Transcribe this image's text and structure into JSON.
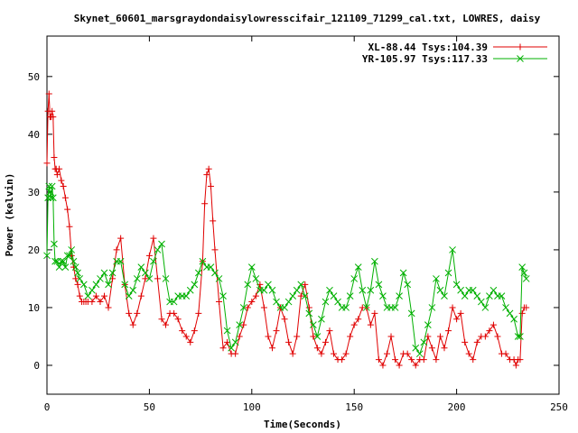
{
  "chart_data": {
    "type": "line",
    "title": "Skynet_60601_marsgraydondaisylowresscifair_121109_71299_cal.txt, LOWRES, daisy",
    "xlabel": "Time(Seconds)",
    "ylabel": "Power (kelvin)",
    "xlim": [
      0,
      250
    ],
    "ylim": [
      -5,
      57
    ],
    "xticks": [
      "0",
      "50",
      "100",
      "150",
      "200",
      "250"
    ],
    "yticks": [
      "0",
      "10",
      "20",
      "30",
      "40",
      "50"
    ],
    "xtick_values": [
      0,
      50,
      100,
      150,
      200,
      250
    ],
    "ytick_values": [
      0,
      10,
      20,
      30,
      40,
      50
    ],
    "grid": false,
    "legend_position": "top-right",
    "series": [
      {
        "name": "XL-88.44 Tsys:104.39",
        "color": "#e00000",
        "marker": "plus",
        "x": [
          0,
          0.5,
          1,
          1.5,
          2,
          2.5,
          3,
          3.5,
          4,
          4.5,
          5,
          6,
          7,
          8,
          9,
          10,
          11,
          12,
          13,
          14,
          15,
          16,
          17,
          18,
          19,
          20,
          22,
          24,
          26,
          28,
          30,
          32,
          34,
          36,
          38,
          40,
          42,
          44,
          46,
          48,
          50,
          52,
          54,
          56,
          58,
          60,
          62,
          64,
          66,
          68,
          70,
          72,
          74,
          76,
          77,
          78,
          79,
          80,
          81,
          82,
          84,
          86,
          88,
          90,
          92,
          94,
          96,
          98,
          100,
          102,
          104,
          106,
          108,
          110,
          112,
          114,
          116,
          118,
          120,
          122,
          124,
          126,
          128,
          130,
          132,
          134,
          136,
          138,
          140,
          142,
          144,
          146,
          148,
          150,
          152,
          154,
          156,
          158,
          160,
          162,
          164,
          166,
          168,
          170,
          172,
          174,
          176,
          178,
          180,
          182,
          184,
          186,
          188,
          190,
          192,
          194,
          196,
          198,
          200,
          202,
          204,
          206,
          208,
          210,
          212,
          214,
          216,
          218,
          220,
          222,
          224,
          226,
          228,
          229,
          230,
          231,
          232,
          233,
          234
        ],
        "values": [
          35,
          44,
          47,
          43,
          43,
          44,
          43,
          36,
          34,
          34,
          33,
          34,
          32,
          31,
          29,
          27,
          24,
          19,
          17,
          15,
          14,
          12,
          11,
          11,
          11,
          11,
          11,
          12,
          11,
          12,
          10,
          15,
          20,
          22,
          14,
          9,
          7,
          9,
          12,
          15,
          19,
          22,
          15,
          8,
          7,
          9,
          9,
          8,
          6,
          5,
          4,
          6,
          9,
          18,
          28,
          33,
          34,
          31,
          25,
          20,
          11,
          3,
          4,
          2,
          2,
          5,
          7,
          10,
          11,
          12,
          14,
          10,
          5,
          3,
          6,
          10,
          8,
          4,
          2,
          5,
          12,
          14,
          10,
          5,
          3,
          2,
          4,
          6,
          2,
          1,
          1,
          2,
          5,
          7,
          8,
          10,
          10,
          7,
          9,
          1,
          0,
          2,
          5,
          1,
          0,
          2,
          2,
          1,
          0,
          1,
          1,
          5,
          3,
          1,
          5,
          3,
          6,
          10,
          8,
          9,
          4,
          2,
          1,
          4,
          5,
          5,
          6,
          7,
          5,
          2,
          2,
          1,
          1,
          0,
          1,
          1,
          9,
          10,
          10
        ]
      },
      {
        "name": "YR-105.97 Tsys:117.33",
        "color": "#00b000",
        "marker": "x",
        "x": [
          0,
          0.5,
          1,
          1.5,
          2,
          2.5,
          3,
          3.5,
          4,
          5,
          6,
          7,
          8,
          9,
          10,
          11,
          12,
          13,
          14,
          15,
          16,
          18,
          20,
          22,
          24,
          26,
          28,
          30,
          32,
          34,
          36,
          38,
          40,
          42,
          44,
          46,
          48,
          50,
          52,
          54,
          56,
          58,
          60,
          62,
          64,
          66,
          68,
          70,
          72,
          74,
          76,
          78,
          80,
          82,
          84,
          86,
          88,
          90,
          92,
          94,
          96,
          98,
          100,
          102,
          104,
          106,
          108,
          110,
          112,
          114,
          116,
          118,
          120,
          122,
          124,
          126,
          128,
          130,
          132,
          134,
          136,
          138,
          140,
          142,
          144,
          146,
          148,
          150,
          152,
          154,
          156,
          158,
          160,
          162,
          164,
          166,
          168,
          170,
          172,
          174,
          176,
          178,
          180,
          182,
          184,
          186,
          188,
          190,
          192,
          194,
          196,
          198,
          200,
          202,
          204,
          206,
          208,
          210,
          212,
          214,
          216,
          218,
          220,
          222,
          224,
          226,
          228,
          230,
          231,
          232,
          233,
          234
        ],
        "values": [
          19,
          29,
          31,
          30,
          29,
          31,
          29,
          21,
          18,
          18,
          17,
          18,
          18,
          17,
          19,
          19,
          20,
          18,
          17,
          16,
          15,
          14,
          12,
          13,
          14,
          15,
          16,
          14,
          16,
          18,
          18,
          14,
          12,
          13,
          15,
          17,
          16,
          15,
          18,
          20,
          21,
          15,
          11,
          11,
          12,
          12,
          12,
          13,
          14,
          16,
          18,
          17,
          17,
          16,
          15,
          12,
          6,
          3,
          4,
          7,
          10,
          14,
          17,
          15,
          13,
          13,
          14,
          13,
          11,
          10,
          10,
          11,
          12,
          13,
          14,
          12,
          9,
          7,
          5,
          8,
          11,
          13,
          12,
          11,
          10,
          10,
          12,
          15,
          17,
          13,
          10,
          13,
          18,
          14,
          12,
          10,
          10,
          10,
          12,
          16,
          14,
          9,
          3,
          2,
          4,
          7,
          10,
          15,
          13,
          12,
          16,
          20,
          14,
          13,
          12,
          13,
          13,
          12,
          11,
          10,
          12,
          13,
          12,
          12,
          10,
          9,
          8,
          5,
          5,
          17,
          16,
          15
        ]
      }
    ]
  }
}
